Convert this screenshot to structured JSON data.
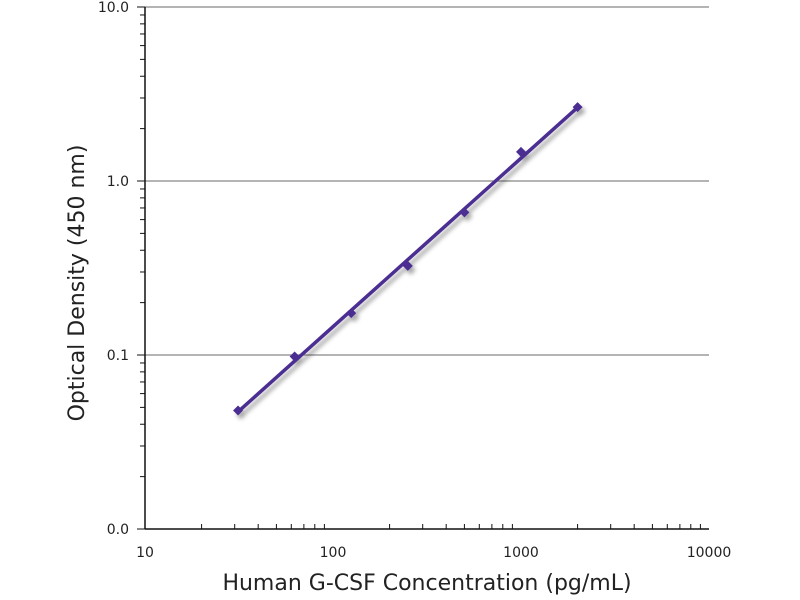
{
  "chart_data": {
    "type": "scatter",
    "title": "",
    "xlabel": "Human G-CSF Concentration (pg/mL)",
    "ylabel": "Optical Density (450 nm)",
    "x_scale": "log",
    "y_scale": "log",
    "xlim": [
      10,
      10000
    ],
    "ylim": [
      0.01,
      10
    ],
    "x_ticks": [
      10,
      100,
      1000,
      10000
    ],
    "x_tick_labels": [
      "10",
      "100",
      "1000",
      "10000"
    ],
    "y_ticks": [
      0.01,
      0.1,
      1,
      10
    ],
    "y_tick_labels": [
      "0.0",
      "0.1",
      "1.0",
      "10.0"
    ],
    "grid": "horizontal major",
    "legend": "none",
    "series": [
      {
        "x": [
          31.25,
          62.5,
          125,
          250,
          500,
          1000,
          2000
        ],
        "y": [
          0.048,
          0.098,
          0.174,
          0.325,
          0.66,
          1.47,
          2.66
        ],
        "color": "#4b2e91",
        "marker": "diamond",
        "fit_line": true
      }
    ]
  }
}
